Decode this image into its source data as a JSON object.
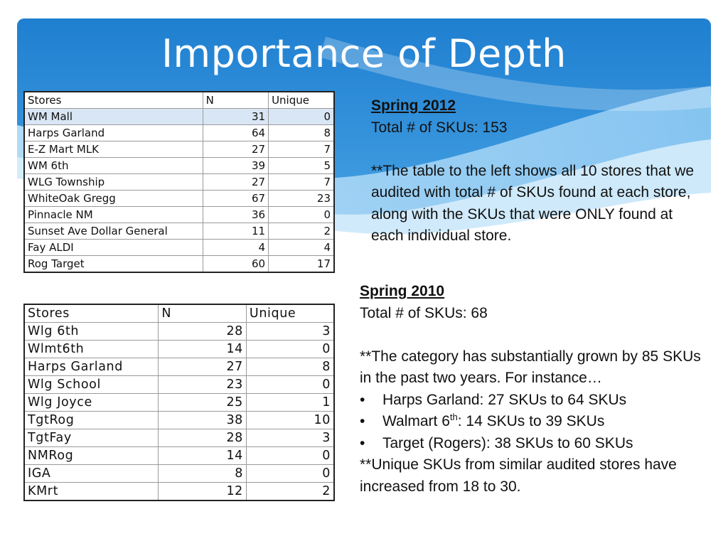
{
  "slide": {
    "title": "Importance of Depth",
    "colors": {
      "header_blue": "#2e8fd8",
      "header_light": "#8fcaf3",
      "selection": "#d9e6f5"
    }
  },
  "table_2012": {
    "headers": [
      "Stores",
      "N",
      "Unique"
    ],
    "selected_row_index": 0,
    "rows": [
      [
        "WM Mall",
        "31",
        "0"
      ],
      [
        "Harps Garland",
        "64",
        "8"
      ],
      [
        "E-Z Mart MLK",
        "27",
        "7"
      ],
      [
        "WM 6th",
        "39",
        "5"
      ],
      [
        "WLG Township",
        "27",
        "7"
      ],
      [
        "WhiteOak Gregg",
        "67",
        "23"
      ],
      [
        "Pinnacle NM",
        "36",
        "0"
      ],
      [
        "Sunset Ave Dollar General",
        "11",
        "2"
      ],
      [
        "Fay ALDI",
        "4",
        "4"
      ],
      [
        "Rog Target",
        "60",
        "17"
      ]
    ]
  },
  "table_2010": {
    "headers": [
      "Stores",
      "N",
      "Unique"
    ],
    "rows": [
      [
        "Wlg 6th",
        "28",
        "3"
      ],
      [
        "Wlmt6th",
        "14",
        "0"
      ],
      [
        "Harps Garland",
        "27",
        "8"
      ],
      [
        "Wlg School",
        "23",
        "0"
      ],
      [
        "Wlg Joyce",
        "25",
        "1"
      ],
      [
        "TgtRog",
        "38",
        "10"
      ],
      [
        "TgtFay",
        "28",
        "3"
      ],
      [
        "NMRog",
        "14",
        "0"
      ],
      [
        "IGA",
        "8",
        "0"
      ],
      [
        "KMrt",
        "12",
        "2"
      ]
    ]
  },
  "spring2012": {
    "heading": "Spring 2012",
    "total": "Total # of SKUs: 153",
    "note": "**The table to the left shows all 10 stores that we audited with total # of SKUs found at each store, along with the SKUs that were ONLY found at each individual store."
  },
  "spring2010": {
    "heading": "Spring 2010",
    "total": "Total # of SKUs: 68",
    "note": "**The category has substantially grown by 85 SKUs in the past two years. For instance…",
    "bullets": [
      {
        "marker": "•",
        "before": "Harps Garland: 27 SKUs to 64 SKUs",
        "sup": "",
        "after": ""
      },
      {
        "marker": "•",
        "before": "Walmart 6",
        "sup": "th",
        "after": ": 14 SKUs to 39 SKUs"
      },
      {
        "marker": "•",
        "before": "Target (Rogers): 38 SKUs to 60 SKUs",
        "sup": "",
        "after": ""
      }
    ],
    "closing": "**Unique SKUs from similar audited stores have increased from 18 to 30."
  }
}
